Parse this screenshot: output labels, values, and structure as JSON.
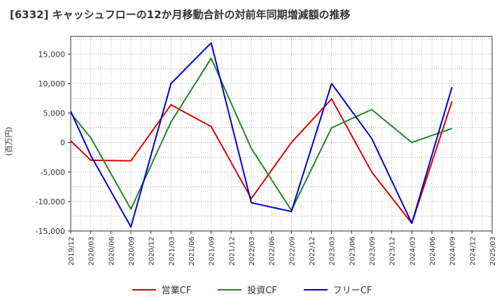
{
  "chart_data": {
    "type": "line",
    "title": "[6332]  キャッシュフローの12か月移動合計の対前年同期増減額の推移",
    "ylabel": "(百万円)",
    "xlabel": "",
    "ylim": [
      -15000,
      18000
    ],
    "yticks": [
      15000,
      10000,
      5000,
      0,
      -5000,
      -10000,
      -15000
    ],
    "ytick_labels": [
      "15,000",
      "10,000",
      "5,000",
      "0",
      "-5,000",
      "-10,000",
      "-15,000"
    ],
    "categories": [
      "2019/12",
      "2020/03",
      "2020/06",
      "2020/09",
      "2020/12",
      "2021/03",
      "2021/06",
      "2021/09",
      "2021/12",
      "2022/03",
      "2022/06",
      "2022/09",
      "2022/12",
      "2023/03",
      "2023/06",
      "2023/09",
      "2023/12",
      "2024/03",
      "2024/06",
      "2024/09",
      "2024/12",
      "2025/03"
    ],
    "grid": true,
    "legend_position": "bottom",
    "series": [
      {
        "name": "営業CF",
        "color": "#dd0000",
        "values": [
          300,
          -3000,
          null,
          -3100,
          null,
          6400,
          null,
          2700,
          null,
          -9500,
          null,
          0,
          null,
          7400,
          null,
          -5000,
          null,
          -13700,
          null,
          7000,
          null,
          null
        ]
      },
      {
        "name": "投資CF",
        "color": "#228822",
        "values": [
          5000,
          800,
          null,
          -11300,
          null,
          3500,
          null,
          14300,
          null,
          -1000,
          null,
          -11500,
          null,
          2500,
          null,
          5600,
          null,
          0,
          null,
          2400,
          null,
          null
        ]
      },
      {
        "name": "フリーCF",
        "color": "#0000cc",
        "values": [
          5300,
          -2200,
          null,
          -14300,
          null,
          10000,
          null,
          16900,
          null,
          -10200,
          null,
          -11700,
          null,
          10000,
          null,
          700,
          null,
          -13700,
          null,
          9400,
          null,
          null
        ]
      }
    ]
  }
}
